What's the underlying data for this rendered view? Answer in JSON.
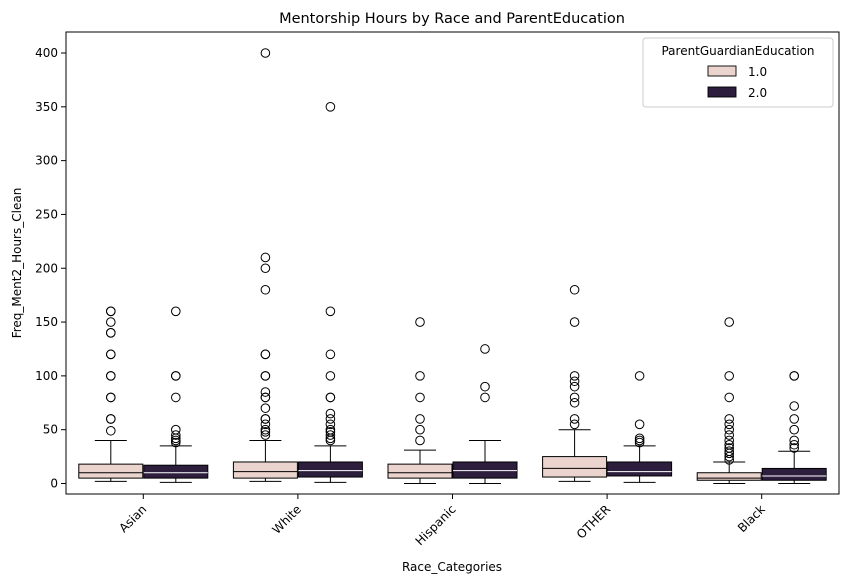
{
  "chart_data": {
    "type": "box",
    "title": "Mentorship Hours by Race and ParentEducation",
    "xlabel": "Race_Categories",
    "ylabel": "Freq_Ment2_Hours_Clean",
    "ylim": [
      -20,
      420
    ],
    "yticks": [
      0,
      50,
      100,
      150,
      200,
      250,
      300,
      350,
      400
    ],
    "categories": [
      "Asian",
      "White",
      "Hispanic",
      "OTHER",
      "Black"
    ],
    "legend": {
      "title": "ParentGuardianEducation",
      "position": "top-right",
      "entries": [
        "1.0",
        "2.0"
      ]
    },
    "colors": {
      "1.0": "#ebd4cd",
      "2.0": "#2d1e3e"
    },
    "series": [
      {
        "name": "1.0",
        "color": "#ebd4cd",
        "boxes": [
          {
            "whislo": 2,
            "q1": 5,
            "med": 10,
            "q3": 18,
            "whishi": 40,
            "fliers": [
              49,
              60,
              60,
              80,
              80,
              100,
              100,
              120,
              120,
              140,
              140,
              150,
              160,
              160
            ]
          },
          {
            "whislo": 2,
            "q1": 5,
            "med": 11,
            "q3": 20,
            "whishi": 40,
            "fliers": [
              45,
              48,
              50,
              55,
              60,
              60,
              70,
              80,
              80,
              85,
              100,
              100,
              120,
              120,
              180,
              200,
              210,
              400
            ]
          },
          {
            "whislo": 0,
            "q1": 5,
            "med": 10,
            "q3": 18,
            "whishi": 31,
            "fliers": [
              40,
              50,
              60,
              80,
              100,
              150
            ]
          },
          {
            "whislo": 2,
            "q1": 6,
            "med": 14,
            "q3": 25,
            "whishi": 50,
            "fliers": [
              55,
              60,
              75,
              80,
              90,
              95,
              100,
              150,
              180
            ]
          },
          {
            "whislo": 0,
            "q1": 3,
            "med": 5,
            "q3": 10,
            "whishi": 20,
            "fliers": [
              22,
              25,
              28,
              30,
              33,
              36,
              40,
              45,
              50,
              55,
              60,
              80,
              100,
              150
            ]
          }
        ]
      },
      {
        "name": "2.0",
        "color": "#2d1e3e",
        "boxes": [
          {
            "whislo": 1,
            "q1": 5,
            "med": 10,
            "q3": 17,
            "whishi": 35,
            "fliers": [
              38,
              40,
              42,
              45,
              50,
              80,
              100,
              100,
              160
            ]
          },
          {
            "whislo": 1,
            "q1": 6,
            "med": 12,
            "q3": 20,
            "whishi": 35,
            "fliers": [
              40,
              42,
              45,
              48,
              50,
              55,
              60,
              65,
              80,
              80,
              100,
              120,
              160,
              350
            ]
          },
          {
            "whislo": 0,
            "q1": 5,
            "med": 12,
            "q3": 20,
            "whishi": 40,
            "fliers": [
              80,
              90,
              125
            ]
          },
          {
            "whislo": 1,
            "q1": 7,
            "med": 11,
            "q3": 20,
            "whishi": 35,
            "fliers": [
              38,
              40,
              42,
              55,
              100
            ]
          },
          {
            "whislo": 0,
            "q1": 3,
            "med": 7,
            "q3": 14,
            "whishi": 30,
            "fliers": [
              33,
              36,
              40,
              50,
              60,
              72,
              100,
              100
            ]
          }
        ]
      }
    ]
  }
}
